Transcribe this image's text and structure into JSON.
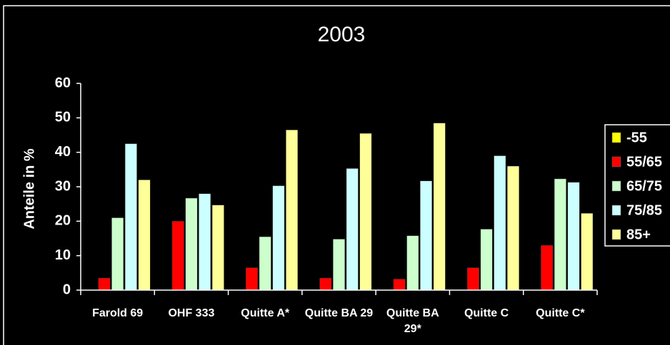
{
  "chart_data": {
    "type": "bar",
    "title": "2003",
    "y_label": "Anteile in %",
    "categories": [
      "Farold 69",
      "OHF 333",
      "Quitte A*",
      "Quitte BA 29",
      "Quitte BA 29*",
      "Quitte C",
      "Quitte C*"
    ],
    "series": [
      {
        "name": "-55",
        "color": "#ffff00",
        "values": [
          0,
          0,
          0,
          0,
          0,
          0,
          0
        ]
      },
      {
        "name": "55/65",
        "color": "#ff0000",
        "values": [
          3.5,
          20,
          6.5,
          3.5,
          3.2,
          6.5,
          13
        ]
      },
      {
        "name": "65/75",
        "color": "#ccffcc",
        "values": [
          21,
          26.7,
          15.5,
          14.8,
          15.8,
          17.7,
          32.3
        ]
      },
      {
        "name": "75/85",
        "color": "#ccffff",
        "values": [
          42.5,
          28,
          30.3,
          35.3,
          31.7,
          39,
          31.3
        ]
      },
      {
        "name": "85+",
        "color": "#ffff99",
        "values": [
          32,
          24.7,
          46.5,
          45.5,
          48.5,
          36,
          22.3
        ]
      }
    ],
    "ylim": [
      0,
      60
    ],
    "yticks": [
      0,
      10,
      20,
      30,
      40,
      50,
      60
    ],
    "legend": "right"
  }
}
